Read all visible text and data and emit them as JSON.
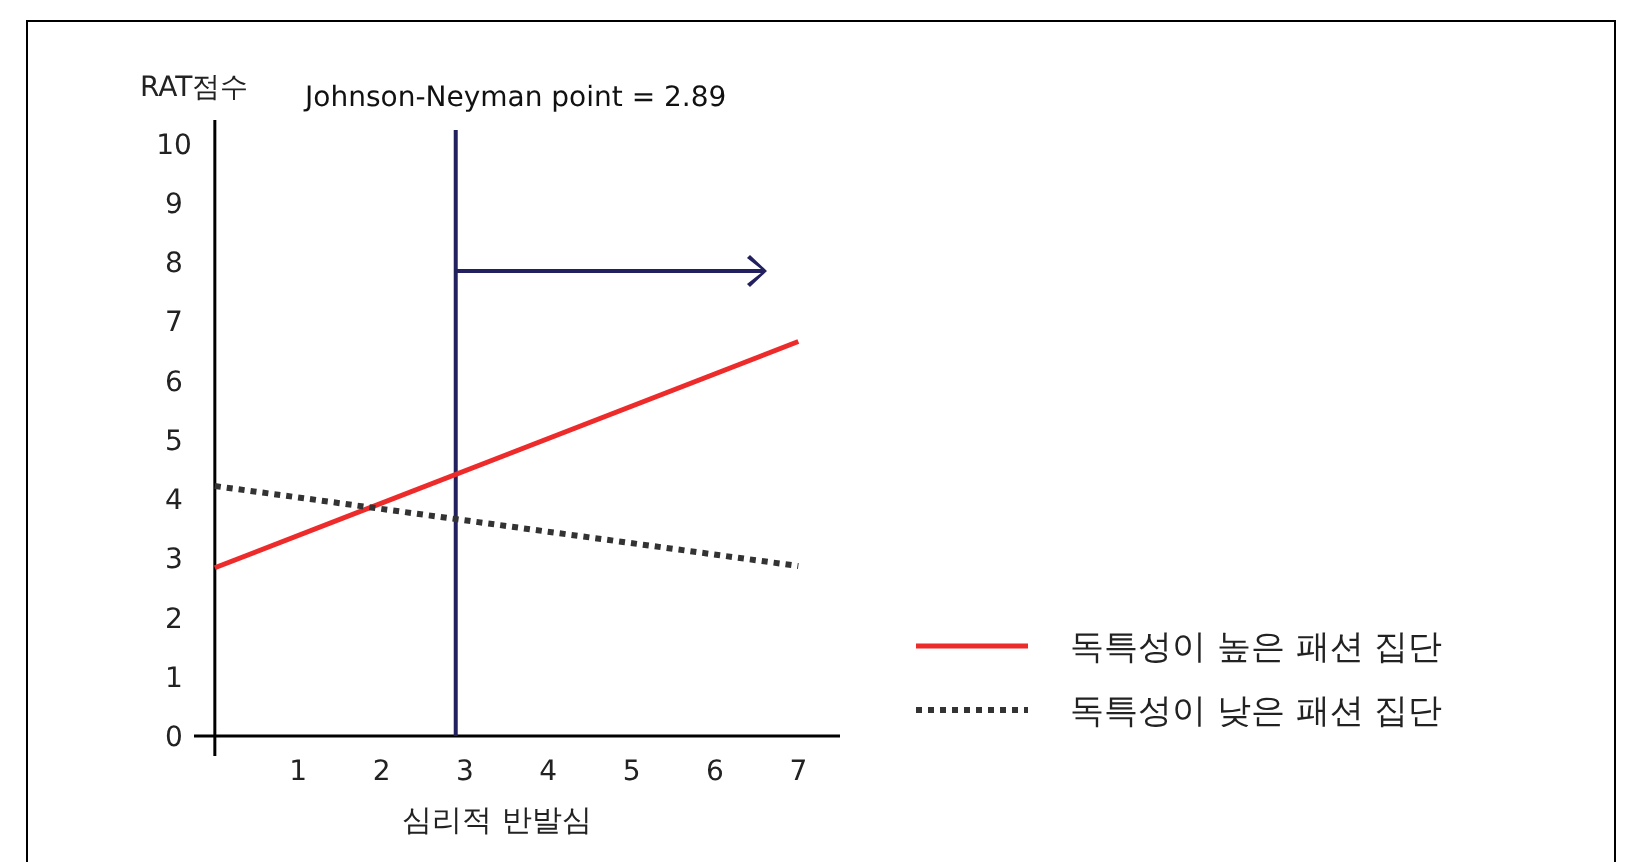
{
  "chart_data": {
    "type": "line",
    "xlabel": "심리적 반발심",
    "ylabel": "RAT점수",
    "x": [
      0,
      7
    ],
    "xlim": [
      -0.25,
      7.5
    ],
    "ylim": [
      0,
      10.4
    ],
    "xticks": [
      {
        "value": 0,
        "label": null
      },
      1,
      2,
      3,
      4,
      5,
      6,
      7
    ],
    "yticks": [
      0,
      1,
      2,
      3,
      4,
      5,
      6,
      7,
      8,
      9,
      10
    ],
    "series": [
      {
        "name": "독특성이 높은 패션 집단",
        "color": "#ee2b2b",
        "values": [
          2.84,
          6.66
        ]
      },
      {
        "name": "독특성이 낮은 패션 집단",
        "color": "#333333",
        "values": [
          4.22,
          2.87
        ],
        "line_style": "dotted"
      }
    ],
    "ref_lines": [
      {
        "axis": "x",
        "value": 2.89,
        "label": "Johnson-Neyman point = 2.89",
        "color": "#232060"
      }
    ],
    "legend": "right",
    "grid": false,
    "marker": "none"
  }
}
